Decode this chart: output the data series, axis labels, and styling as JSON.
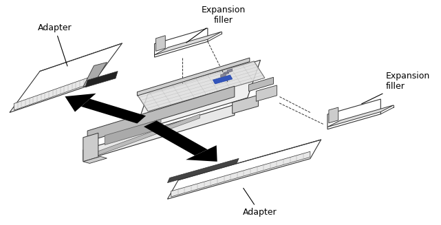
{
  "bg_color": "#ffffff",
  "fig_width": 6.41,
  "fig_height": 3.27,
  "labels": {
    "adapter_top_left": "Adapter",
    "expansion_filler_top": "Expansion\nfiller",
    "expansion_filler_right": "Expansion\nfiller",
    "adapter_bottom": "Adapter"
  },
  "arrow_color": "#000000",
  "line_color": "#333333",
  "fill_color_light": "#e8e8e8",
  "fill_color_white": "#ffffff",
  "fill_color_dark": "#555555",
  "connector_color": "#4466aa"
}
